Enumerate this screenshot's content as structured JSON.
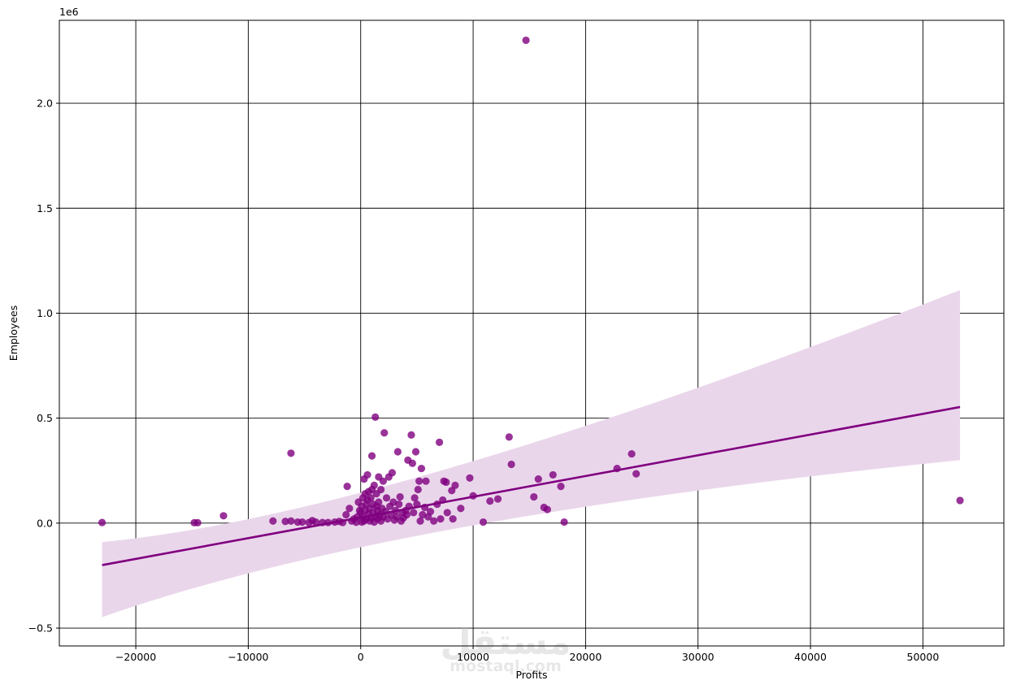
{
  "chart_data": {
    "type": "scatter",
    "xlabel": "Profits",
    "ylabel": "Employees",
    "y_offset_label": "1e6",
    "xlim": [
      -26800,
      57200
    ],
    "ylim": [
      -585000,
      2395000
    ],
    "x_ticks": [
      -20000,
      -10000,
      0,
      10000,
      20000,
      30000,
      40000,
      50000
    ],
    "x_tick_labels": [
      "−20000",
      "−10000",
      "0",
      "10000",
      "20000",
      "30000",
      "40000",
      "50000"
    ],
    "y_ticks": [
      -500000,
      0,
      500000,
      1000000,
      1500000,
      2000000
    ],
    "y_tick_labels": [
      "−0.5",
      "0.0",
      "0.5",
      "1.0",
      "1.5",
      "2.0"
    ],
    "grid": true,
    "colors": {
      "points": "#800080",
      "line": "#800080",
      "band": "#ead6eb",
      "grid": "#000000"
    },
    "series": [
      {
        "points": [
          [
            14700,
            2300000
          ],
          [
            -23000,
            3000
          ],
          [
            -14800,
            2000
          ],
          [
            -14500,
            2000
          ],
          [
            -12200,
            35000
          ],
          [
            -7800,
            10000
          ],
          [
            -6700,
            8000
          ],
          [
            -6200,
            10000
          ],
          [
            -6200,
            333000
          ],
          [
            -5600,
            5000
          ],
          [
            -5200,
            5000
          ],
          [
            -4600,
            3000
          ],
          [
            -4300,
            12000
          ],
          [
            -4000,
            5000
          ],
          [
            -3400,
            3000
          ],
          [
            -2900,
            3000
          ],
          [
            -2300,
            5000
          ],
          [
            -1900,
            8000
          ],
          [
            -1600,
            3000
          ],
          [
            -1300,
            40000
          ],
          [
            -1200,
            175000
          ],
          [
            -1000,
            70000
          ],
          [
            -800,
            10000
          ],
          [
            -600,
            20000
          ],
          [
            -400,
            4000
          ],
          [
            -300,
            30000
          ],
          [
            -200,
            100000
          ],
          [
            -100,
            60000
          ],
          [
            0,
            50000
          ],
          [
            100,
            5000
          ],
          [
            100,
            80000
          ],
          [
            200,
            120000
          ],
          [
            200,
            30000
          ],
          [
            300,
            10000
          ],
          [
            300,
            210000
          ],
          [
            400,
            140000
          ],
          [
            400,
            60000
          ],
          [
            500,
            90000
          ],
          [
            500,
            20000
          ],
          [
            600,
            110000
          ],
          [
            600,
            230000
          ],
          [
            700,
            45000
          ],
          [
            700,
            150000
          ],
          [
            800,
            70000
          ],
          [
            800,
            10000
          ],
          [
            900,
            120000
          ],
          [
            900,
            25000
          ],
          [
            1000,
            160000
          ],
          [
            1000,
            320000
          ],
          [
            1100,
            50000
          ],
          [
            1100,
            90000
          ],
          [
            1200,
            5000
          ],
          [
            1200,
            180000
          ],
          [
            1300,
            30000
          ],
          [
            1300,
            505000
          ],
          [
            1400,
            80000
          ],
          [
            1400,
            140000
          ],
          [
            1500,
            60000
          ],
          [
            1500,
            20000
          ],
          [
            1600,
            220000
          ],
          [
            1600,
            100000
          ],
          [
            1700,
            40000
          ],
          [
            1800,
            160000
          ],
          [
            1800,
            10000
          ],
          [
            1900,
            70000
          ],
          [
            2000,
            30000
          ],
          [
            2000,
            200000
          ],
          [
            2100,
            430000
          ],
          [
            2200,
            55000
          ],
          [
            2300,
            120000
          ],
          [
            2400,
            20000
          ],
          [
            2500,
            220000
          ],
          [
            2600,
            80000
          ],
          [
            2700,
            40000
          ],
          [
            2800,
            240000
          ],
          [
            2900,
            100000
          ],
          [
            3000,
            15000
          ],
          [
            3100,
            60000
          ],
          [
            3200,
            30000
          ],
          [
            3300,
            340000
          ],
          [
            3400,
            90000
          ],
          [
            3500,
            125000
          ],
          [
            3600,
            10000
          ],
          [
            3700,
            50000
          ],
          [
            3800,
            25000
          ],
          [
            4000,
            60000
          ],
          [
            4100,
            40000
          ],
          [
            4200,
            300000
          ],
          [
            4300,
            80000
          ],
          [
            4500,
            420000
          ],
          [
            4600,
            285000
          ],
          [
            4700,
            50000
          ],
          [
            4800,
            120000
          ],
          [
            4900,
            340000
          ],
          [
            5000,
            90000
          ],
          [
            5100,
            160000
          ],
          [
            5200,
            200000
          ],
          [
            5300,
            10000
          ],
          [
            5400,
            260000
          ],
          [
            5500,
            40000
          ],
          [
            5700,
            75000
          ],
          [
            5800,
            200000
          ],
          [
            6000,
            30000
          ],
          [
            6200,
            55000
          ],
          [
            6500,
            10000
          ],
          [
            6800,
            90000
          ],
          [
            7000,
            385000
          ],
          [
            7100,
            20000
          ],
          [
            7300,
            110000
          ],
          [
            7400,
            200000
          ],
          [
            7600,
            195000
          ],
          [
            7700,
            50000
          ],
          [
            8100,
            155000
          ],
          [
            8200,
            20000
          ],
          [
            8400,
            180000
          ],
          [
            8900,
            70000
          ],
          [
            9700,
            215000
          ],
          [
            10000,
            130000
          ],
          [
            10900,
            5000
          ],
          [
            11500,
            105000
          ],
          [
            12200,
            115000
          ],
          [
            13200,
            410000
          ],
          [
            13400,
            280000
          ],
          [
            15400,
            125000
          ],
          [
            15800,
            210000
          ],
          [
            16300,
            75000
          ],
          [
            16600,
            65000
          ],
          [
            17100,
            230000
          ],
          [
            17800,
            175000
          ],
          [
            18100,
            5000
          ],
          [
            22800,
            260000
          ],
          [
            24100,
            330000
          ],
          [
            24500,
            235000
          ],
          [
            53300,
            108000
          ]
        ]
      }
    ],
    "regression": {
      "x_start": -23000,
      "x_end": 53300,
      "y_start": -200000,
      "y_end": 553000,
      "ci_lower_start": -448000,
      "ci_upper_start": -90000,
      "ci_lower_end": 300000,
      "ci_upper_end": 1110000
    }
  },
  "watermark": {
    "arabic": "مستقل",
    "latin": "mostaql.com"
  }
}
